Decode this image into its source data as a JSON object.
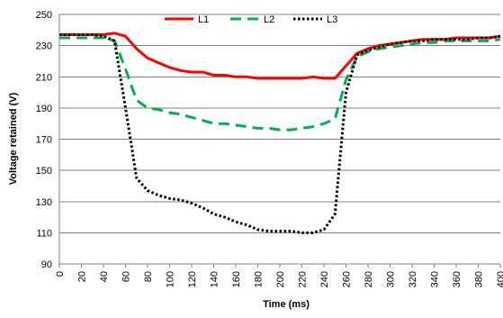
{
  "chart_data": {
    "type": "line",
    "xlabel": "Time (ms)",
    "ylabel": "Voltage retained (V)",
    "x": [
      0,
      10,
      20,
      30,
      40,
      50,
      60,
      70,
      80,
      90,
      100,
      110,
      120,
      130,
      140,
      150,
      160,
      170,
      180,
      190,
      200,
      210,
      220,
      230,
      240,
      250,
      260,
      270,
      280,
      290,
      300,
      310,
      320,
      330,
      340,
      350,
      360,
      370,
      380,
      390,
      400
    ],
    "xticks": [
      0,
      20,
      40,
      60,
      80,
      100,
      120,
      140,
      160,
      180,
      200,
      220,
      240,
      260,
      280,
      300,
      320,
      340,
      360,
      380,
      400
    ],
    "xtick_labels": [
      "0",
      "20",
      "40",
      "60",
      "80",
      "100",
      "120",
      "140",
      "160",
      "180",
      "200",
      "220",
      "240",
      "260",
      "280",
      "300",
      "320",
      "340",
      "360",
      "380",
      "400"
    ],
    "xlim": [
      0,
      400
    ],
    "ylim": [
      90,
      250
    ],
    "yticks": [
      90,
      110,
      130,
      150,
      170,
      190,
      210,
      230,
      250
    ],
    "ytick_labels": [
      "90",
      "110",
      "130",
      "150",
      "170",
      "190",
      "210",
      "230",
      "250"
    ],
    "grid": true,
    "legend_position": "top-center",
    "series": [
      {
        "name": "L1",
        "color": "#ff0000",
        "dash": "solid",
        "values": [
          237,
          237,
          237,
          237,
          237,
          238,
          236,
          228,
          222,
          219,
          216,
          214,
          213,
          213,
          211,
          211,
          210,
          210,
          209,
          209,
          209,
          209,
          209,
          210,
          209,
          209,
          217,
          225,
          228,
          230,
          231,
          232,
          233,
          234,
          234,
          234,
          235,
          235,
          235,
          235,
          236
        ]
      },
      {
        "name": "L2",
        "color": "#00b050",
        "dash": "dash",
        "values": [
          235,
          235,
          235,
          235,
          235,
          233,
          215,
          195,
          190,
          189,
          187,
          186,
          184,
          182,
          180,
          180,
          179,
          178,
          177,
          177,
          176,
          176,
          177,
          178,
          180,
          183,
          208,
          223,
          226,
          228,
          229,
          230,
          231,
          232,
          232,
          233,
          233,
          233,
          233,
          233,
          234
        ]
      },
      {
        "name": "L3",
        "color": "#000000",
        "dash": "dot",
        "values": [
          237,
          237,
          237,
          237,
          236,
          233,
          190,
          145,
          137,
          134,
          132,
          131,
          129,
          126,
          122,
          120,
          117,
          115,
          112,
          111,
          111,
          111,
          110,
          110,
          112,
          122,
          200,
          224,
          227,
          229,
          231,
          232,
          233,
          233,
          234,
          234,
          234,
          234,
          235,
          235,
          236
        ]
      }
    ]
  }
}
